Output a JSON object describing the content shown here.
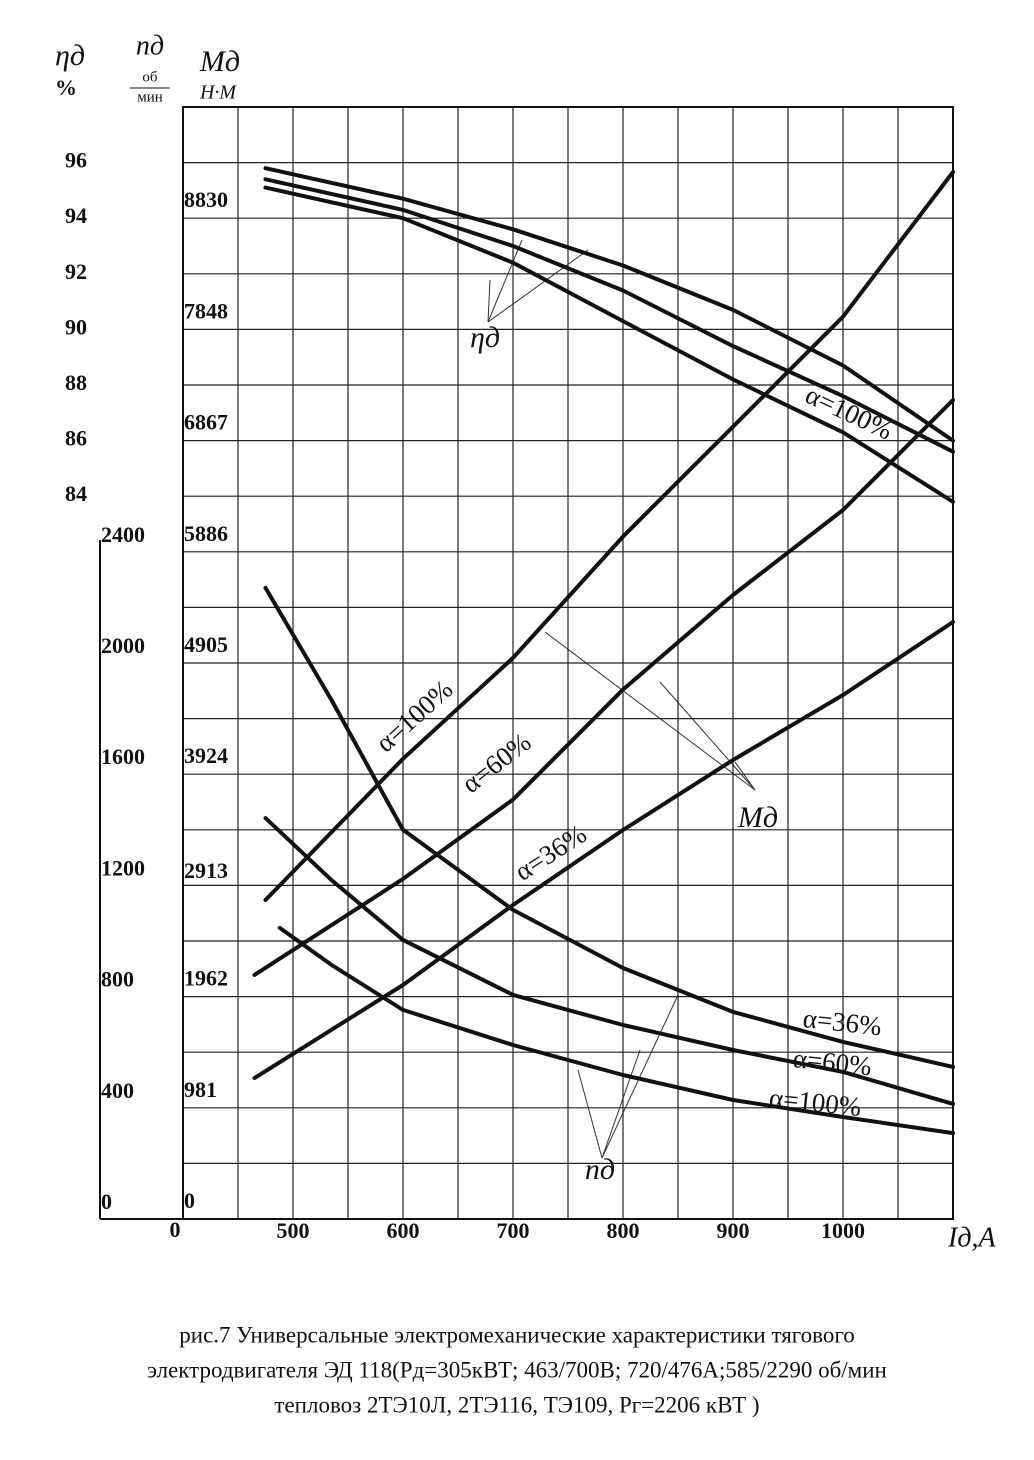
{
  "chart_data": {
    "type": "line",
    "caption": [
      "рис.7 Универсальные  электромеханические характеристики тягового",
      "электродвигателя ЭД 118(Pд=305кВТ; 463/700В; 720/476А;585/2290 об/мин",
      "тепловоз 2ТЭ10Л, 2ТЭ116, ТЭ109, Pг=2206 кВТ )"
    ],
    "x_label": "Iд,A",
    "x_origin_label": "0",
    "xlim": [
      400,
      1100
    ],
    "xticks": [
      500,
      600,
      700,
      800,
      900,
      1000
    ],
    "xgrid": [
      400,
      450,
      500,
      550,
      600,
      650,
      700,
      750,
      800,
      850,
      900,
      950,
      1000,
      1050,
      1100
    ],
    "ygrid": [
      0,
      200,
      400,
      600,
      800,
      1000,
      1200,
      1400,
      1600,
      1800,
      2000,
      2200,
      2400,
      2600,
      2800,
      3000,
      3200,
      3400,
      3600,
      3800,
      4000
    ],
    "grid": true,
    "axes": {
      "eta": {
        "label": "ηд",
        "unit": "%",
        "ylim": [
          58,
          98
        ],
        "yticks": [
          84,
          86,
          88,
          90,
          92,
          94,
          96
        ]
      },
      "n": {
        "label": "nд",
        "unit_top": "об",
        "unit_bottom": "мин",
        "ylim": [
          0,
          4000
        ],
        "yticks": [
          0,
          400,
          800,
          1200,
          1600,
          2000,
          2400
        ]
      },
      "M": {
        "label": "Mд",
        "unit": "Н·М",
        "ylim": [
          0,
          9810
        ],
        "yticks": [
          0,
          981,
          1962,
          2913,
          3924,
          4905,
          5886,
          6867,
          7848,
          8830
        ]
      }
    },
    "annotations": [
      "ηд",
      "Mд",
      "nд"
    ],
    "series": [
      {
        "name": "α=100%",
        "axis": "eta",
        "color": "#111111",
        "x": [
          475,
          600,
          700,
          800,
          900,
          1000,
          1100
        ],
        "values": [
          95.8,
          94.7,
          93.6,
          92.3,
          90.7,
          88.7,
          86.0
        ]
      },
      {
        "axis": "eta",
        "color": "#111111",
        "x": [
          475,
          600,
          700,
          800,
          900,
          1000,
          1100
        ],
        "values": [
          95.4,
          94.3,
          93.0,
          91.4,
          89.4,
          87.6,
          85.6
        ]
      },
      {
        "axis": "eta",
        "color": "#111111",
        "x": [
          475,
          600,
          700,
          800,
          900,
          1000,
          1100
        ],
        "values": [
          95.1,
          94.0,
          92.4,
          90.3,
          88.2,
          86.3,
          83.8
        ]
      },
      {
        "name": "α=100%",
        "axis": "M",
        "color": "#111111",
        "x": [
          475,
          600,
          700,
          800,
          900,
          1000,
          1100
        ],
        "values": [
          2814,
          4060,
          4950,
          6020,
          6990,
          7960,
          9237
        ]
      },
      {
        "name": "α=60%",
        "axis": "M",
        "color": "#111111",
        "x": [
          465,
          600,
          700,
          800,
          900,
          1000,
          1100
        ],
        "values": [
          2153,
          3000,
          3700,
          4670,
          5505,
          6255,
          7225
        ]
      },
      {
        "name": "α=36%",
        "axis": "M",
        "color": "#111111",
        "x": [
          465,
          600,
          700,
          800,
          900,
          1000,
          1100
        ],
        "values": [
          1244,
          2064,
          2770,
          3432,
          4049,
          4623,
          5267
        ]
      },
      {
        "name": "α=36%",
        "axis": "n",
        "color": "#111111",
        "x": [
          475,
          535,
          600,
          700,
          800,
          900,
          1000,
          1100
        ],
        "values": [
          2270,
          1867,
          1400,
          1112,
          903,
          745,
          637,
          547
        ]
      },
      {
        "name": "α=60%",
        "axis": "n",
        "color": "#111111",
        "x": [
          475,
          535,
          600,
          700,
          800,
          900,
          1000,
          1100
        ],
        "values": [
          1442,
          1219,
          1004,
          806,
          698,
          608,
          529,
          414
        ]
      },
      {
        "name": "α=100%",
        "axis": "n",
        "color": "#111111",
        "x": [
          488,
          535,
          600,
          700,
          800,
          900,
          1000,
          1100
        ],
        "values": [
          1047,
          914,
          752,
          626,
          518,
          428,
          367,
          309
        ]
      }
    ]
  }
}
